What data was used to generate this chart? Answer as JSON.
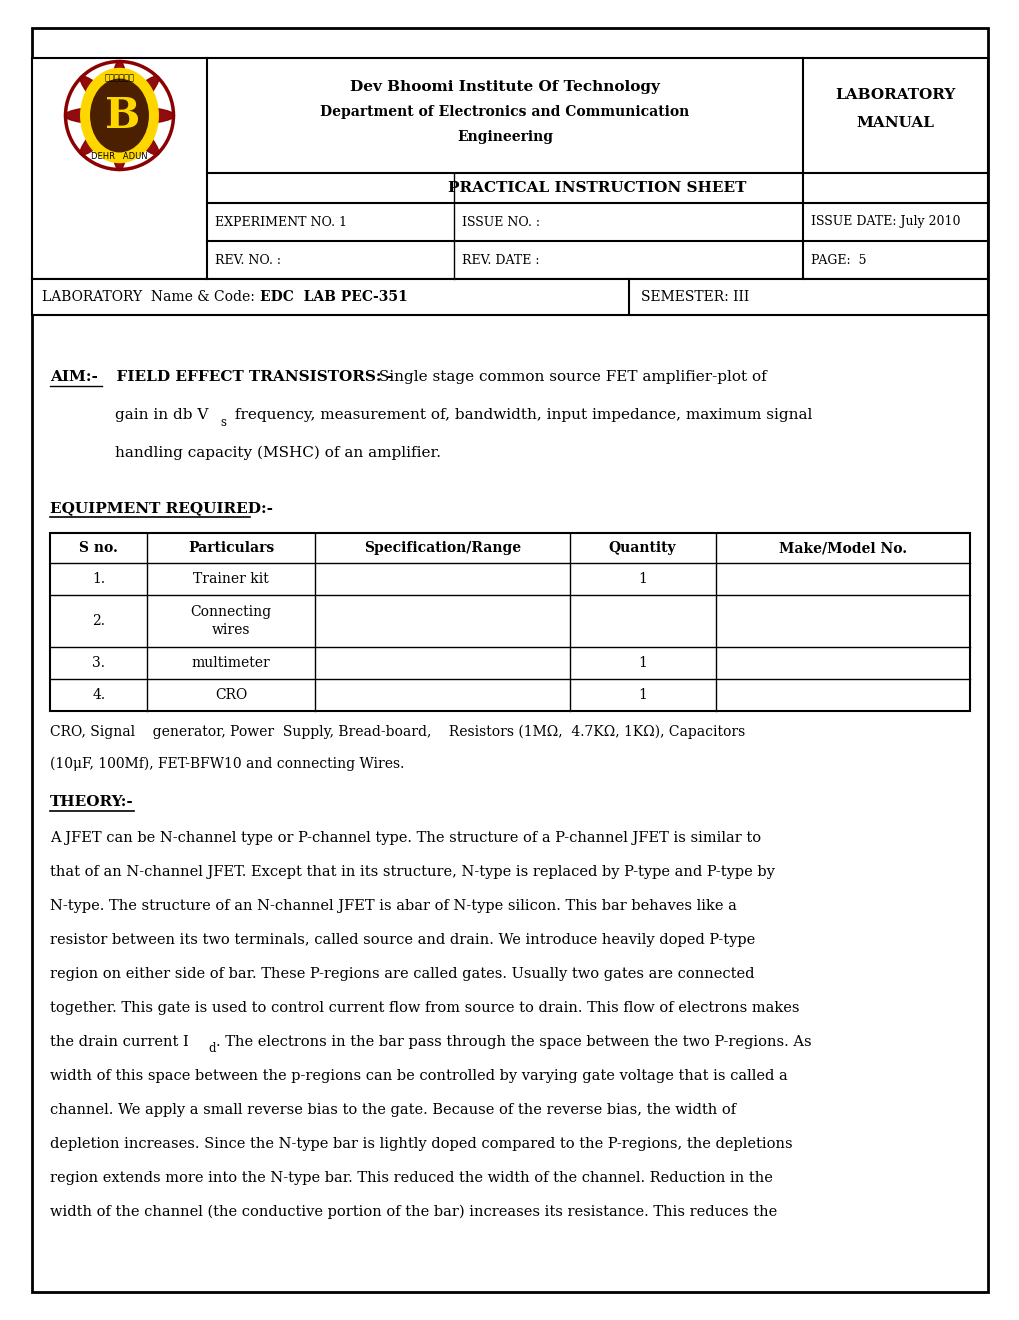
{
  "page_bg": "#ffffff",
  "header": {
    "institute": "Dev Bhoomi Institute Of Technology",
    "dept": "Department of Electronics and Communication",
    "dept2": "Engineering",
    "lab_top": "LABORATORY",
    "lab_bot": "MANUAL",
    "pis": "PRACTICAL INSTRUCTION SHEET",
    "row3_col1": "EXPERIMENT NO. 1",
    "row3_col2": "ISSUE NO. :",
    "row3_col3": "ISSUE DATE: July 2010",
    "row4_col1": "REV. NO. :",
    "row4_col2": "REV. DATE :",
    "row4_col3": "PAGE:  5",
    "bottom_left_normal": "LABORATORY  Name & Code:   ",
    "bottom_left_bold": "EDC  LAB PEC-351",
    "bottom_right": "SEMESTER: III"
  },
  "aim_label": "AIM:-",
  "aim_bold_part": "  FIELD EFFECT TRANSISTORS: -",
  "aim_normal_part": " Single stage common source FET amplifier-plot of",
  "aim_line2_pre": "gain in db V",
  "aim_line2_sub": "s",
  "aim_line2_post": " frequency, measurement of, bandwidth, input impedance, maximum signal",
  "aim_line3": "handling capacity (MSHC) of an amplifier.",
  "equip_label": "EQUIPMENT REQUIRED:-",
  "table_headers": [
    "S no.",
    "Particulars",
    "Specification/Range",
    "Quantity",
    "Make/Model No."
  ],
  "table_rows": [
    [
      "1.",
      "Trainer kit",
      "",
      "1",
      ""
    ],
    [
      "2.",
      "Connecting\nwires",
      "",
      "",
      ""
    ],
    [
      "3.",
      "multimeter",
      "",
      "1",
      ""
    ],
    [
      "4.",
      "CRO",
      "",
      "1",
      ""
    ]
  ],
  "equip_note1": "CRO, Signal    generator, Power  Supply, Bread-board,    Resistors (1MΩ,  4.7KΩ, 1KΩ), Capacitors",
  "equip_note2": "(10μF, 100Mf), FET-BFW10 and connecting Wires.",
  "theory_label": "THEORY:-",
  "theory_lines": [
    "A JFET can be N-channel type or P-channel type. The structure of a P-channel JFET is similar to",
    "that of an N-channel JFET. Except that in its structure, N-type is replaced by P-type and P-type by",
    "N-type. The structure of an N-channel JFET is abar of N-type silicon. This bar behaves like a",
    "resistor between its two terminals, called source and drain. We introduce heavily doped P-type",
    "region on either side of bar. These P-regions are called gates. Usually two gates are connected",
    "together. This gate is used to control current flow from source to drain. This flow of electrons makes",
    "the drain current I",
    "width of this space between the p-regions can be controlled by varying gate voltage that is called a",
    "channel. We apply a small reverse bias to the gate. Because of the reverse bias, the width of",
    "depletion increases. Since the N-type bar is lightly doped compared to the P-regions, the depletions",
    "region extends more into the N-type bar. This reduced the width of the channel. Reduction in the",
    "width of the channel (the conductive portion of the bar) increases its resistance. This reduces the"
  ],
  "theory_id_sub": "d",
  "theory_id_rest": ". The electrons in the bar pass through the space between the two P-regions. As"
}
